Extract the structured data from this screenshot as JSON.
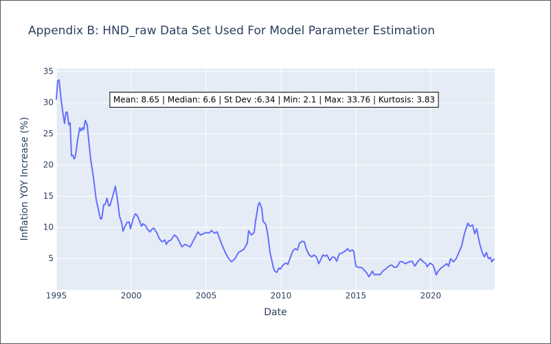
{
  "chart_data": {
    "type": "line",
    "title": "Appendix B: HND_raw Data Set Used For Model Parameter Estimation",
    "x_label": "Date",
    "y_label": "Inflation YOY Increase (%)",
    "annotation": "Mean: 8.65 | Median: 6.6 | St Dev :6.34 | Min: 2.1 | Max: 33.76 | Kurtosis: 3.83",
    "color": "#636efa",
    "grid": true,
    "xlim": [
      1995,
      2024.27
    ],
    "ylim": [
      0,
      35.5
    ],
    "xticks": [
      1995,
      2000,
      2005,
      2010,
      2015,
      2020
    ],
    "yticks": [
      5,
      10,
      15,
      20,
      25,
      30,
      35
    ],
    "x": [
      1995.0,
      1995.09,
      1995.18,
      1995.32,
      1995.46,
      1995.55,
      1995.64,
      1995.73,
      1995.83,
      1995.92,
      1996.01,
      1996.1,
      1996.19,
      1996.28,
      1996.42,
      1996.56,
      1996.65,
      1996.74,
      1996.83,
      1996.93,
      1997.06,
      1997.16,
      1997.29,
      1997.48,
      1997.66,
      1997.84,
      1997.94,
      1998.03,
      1998.17,
      1998.26,
      1998.39,
      1998.49,
      1998.58,
      1998.76,
      1998.94,
      1999.08,
      1999.22,
      1999.36,
      1999.45,
      1999.59,
      1999.72,
      1999.86,
      1999.95,
      2000.14,
      2000.28,
      2000.41,
      2000.6,
      2000.69,
      2000.78,
      2000.96,
      2001.06,
      2001.24,
      2001.42,
      2001.51,
      2001.7,
      2001.88,
      2002.06,
      2002.25,
      2002.34,
      2002.48,
      2002.66,
      2002.89,
      2003.07,
      2003.26,
      2003.39,
      2003.58,
      2003.76,
      2003.94,
      2004.13,
      2004.31,
      2004.45,
      2004.63,
      2004.82,
      2005.0,
      2005.18,
      2005.37,
      2005.55,
      2005.73,
      2005.83,
      2006.01,
      2006.28,
      2006.51,
      2006.7,
      2006.93,
      2007.16,
      2007.52,
      2007.75,
      2007.84,
      2008.03,
      2008.21,
      2008.3,
      2008.49,
      2008.58,
      2008.72,
      2008.81,
      2008.99,
      2009.13,
      2009.27,
      2009.36,
      2009.5,
      2009.59,
      2009.72,
      2009.86,
      2009.95,
      2010.14,
      2010.32,
      2010.46,
      2010.6,
      2010.78,
      2010.96,
      2011.1,
      2011.24,
      2011.42,
      2011.56,
      2011.7,
      2011.88,
      2012.06,
      2012.2,
      2012.39,
      2012.52,
      2012.61,
      2012.8,
      2012.94,
      2013.07,
      2013.26,
      2013.44,
      2013.58,
      2013.72,
      2013.9,
      2014.08,
      2014.27,
      2014.45,
      2014.59,
      2014.77,
      2014.86,
      2015.0,
      2015.18,
      2015.37,
      2015.55,
      2015.73,
      2015.87,
      2016.01,
      2016.1,
      2016.24,
      2016.47,
      2016.61,
      2016.79,
      2016.97,
      2017.2,
      2017.39,
      2017.57,
      2017.75,
      2017.94,
      2018.12,
      2018.3,
      2018.58,
      2018.76,
      2018.94,
      2019.13,
      2019.31,
      2019.5,
      2019.68,
      2019.77,
      2019.95,
      2020.14,
      2020.23,
      2020.37,
      2020.5,
      2020.69,
      2020.87,
      2021.06,
      2021.19,
      2021.33,
      2021.51,
      2021.7,
      2021.88,
      2022.06,
      2022.25,
      2022.48,
      2022.61,
      2022.8,
      2022.94,
      2023.07,
      2023.26,
      2023.44,
      2023.58,
      2023.72,
      2023.85,
      2023.99,
      2024.08,
      2024.17,
      2024.27
    ],
    "values": [
      30.5,
      33.5,
      33.7,
      30.5,
      28,
      26.7,
      28.5,
      28.5,
      26.5,
      26.8,
      21.5,
      21.6,
      21,
      21.5,
      24,
      26,
      25.5,
      26,
      25.7,
      27.2,
      26.5,
      24,
      21,
      18,
      14.5,
      12.5,
      11.4,
      11.4,
      13.7,
      13.7,
      14.7,
      13.5,
      13.5,
      15,
      16.6,
      14.5,
      11.8,
      10.8,
      9.4,
      10.2,
      10.8,
      10.9,
      9.8,
      11.5,
      12.2,
      11.9,
      10.8,
      10.2,
      10.6,
      10.3,
      9.8,
      9.3,
      9.8,
      9.9,
      9.2,
      8.2,
      7.7,
      8,
      7.3,
      7.8,
      8,
      8.8,
      8.4,
      7.5,
      6.9,
      7.3,
      7.1,
      6.9,
      7.8,
      8.6,
      9.3,
      8.8,
      9.0,
      9.2,
      9.1,
      9.5,
      9.1,
      9.3,
      8.7,
      7.5,
      6,
      5,
      4.5,
      5,
      6,
      6.5,
      7.5,
      9.5,
      8.8,
      9.2,
      11,
      13.7,
      14,
      13,
      11,
      10.5,
      8.7,
      6,
      5,
      3.5,
      3,
      2.8,
      3.5,
      3.3,
      4,
      4.3,
      4.1,
      5,
      6.2,
      6.6,
      6.4,
      7.5,
      7.8,
      7.7,
      6.5,
      5.6,
      5.3,
      5.6,
      5.2,
      4.2,
      4.6,
      5.6,
      5.4,
      5.6,
      4.7,
      5.3,
      5.2,
      4.6,
      5.8,
      5.9,
      6.2,
      6.6,
      6.2,
      6.4,
      6.2,
      3.8,
      3.6,
      3.6,
      3.2,
      2.7,
      2.1,
      2.6,
      3,
      2.4,
      2.5,
      2.4,
      3,
      3.3,
      3.8,
      4,
      3.6,
      3.7,
      4.5,
      4.5,
      4.2,
      4.5,
      4.6,
      3.8,
      4.5,
      5,
      4.5,
      4.2,
      3.7,
      4.3,
      4,
      3.5,
      2.4,
      3,
      3.5,
      3.8,
      4.2,
      3.8,
      5,
      4.5,
      5,
      6,
      7,
      9,
      10.7,
      10.2,
      10.4,
      9,
      9.8,
      7.5,
      6,
      5.3,
      6,
      5,
      5.2,
      4.5,
      4.8,
      5
    ]
  }
}
